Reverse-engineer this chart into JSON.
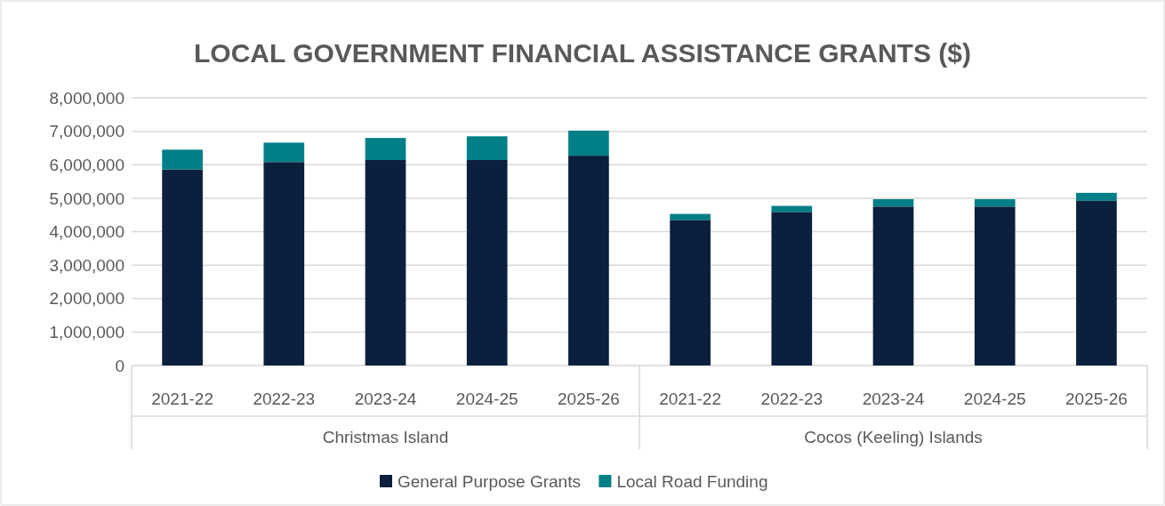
{
  "chart_data": {
    "type": "bar",
    "title": "LOCAL GOVERNMENT FINANCIAL ASSISTANCE GRANTS ($)",
    "categories": [
      "2021-22",
      "2022-23",
      "2023-24",
      "2024-25",
      "2025-26",
      "2021-22",
      "2022-23",
      "2023-24",
      "2024-25",
      "2025-26"
    ],
    "annotations": [
      "Christmas Island",
      "Cocos (Keeling) Islands"
    ],
    "stacked": true,
    "series": [
      {
        "name": "General Purpose Grants",
        "color": "#0b1f3e",
        "values": [
          5860000,
          6080000,
          6140000,
          6140000,
          6270000,
          4350000,
          4590000,
          4750000,
          4750000,
          4920000
        ]
      },
      {
        "name": "Local Road Funding",
        "color": "#007f86",
        "values": [
          590000,
          580000,
          660000,
          710000,
          750000,
          180000,
          180000,
          220000,
          220000,
          240000
        ]
      }
    ],
    "ylim": [
      0,
      8000000
    ],
    "yticks": [
      {
        "value": 0,
        "label": "0"
      },
      {
        "value": 1000000,
        "label": "1,000,000"
      },
      {
        "value": 2000000,
        "label": "2,000,000"
      },
      {
        "value": 3000000,
        "label": "3,000,000"
      },
      {
        "value": 4000000,
        "label": "4,000,000"
      },
      {
        "value": 5000000,
        "label": "5,000,000"
      },
      {
        "value": 6000000,
        "label": "6,000,000"
      },
      {
        "value": 7000000,
        "label": "7,000,000"
      },
      {
        "value": 8000000,
        "label": "8,000,000"
      }
    ],
    "grid": "y",
    "legend": "bottom"
  }
}
